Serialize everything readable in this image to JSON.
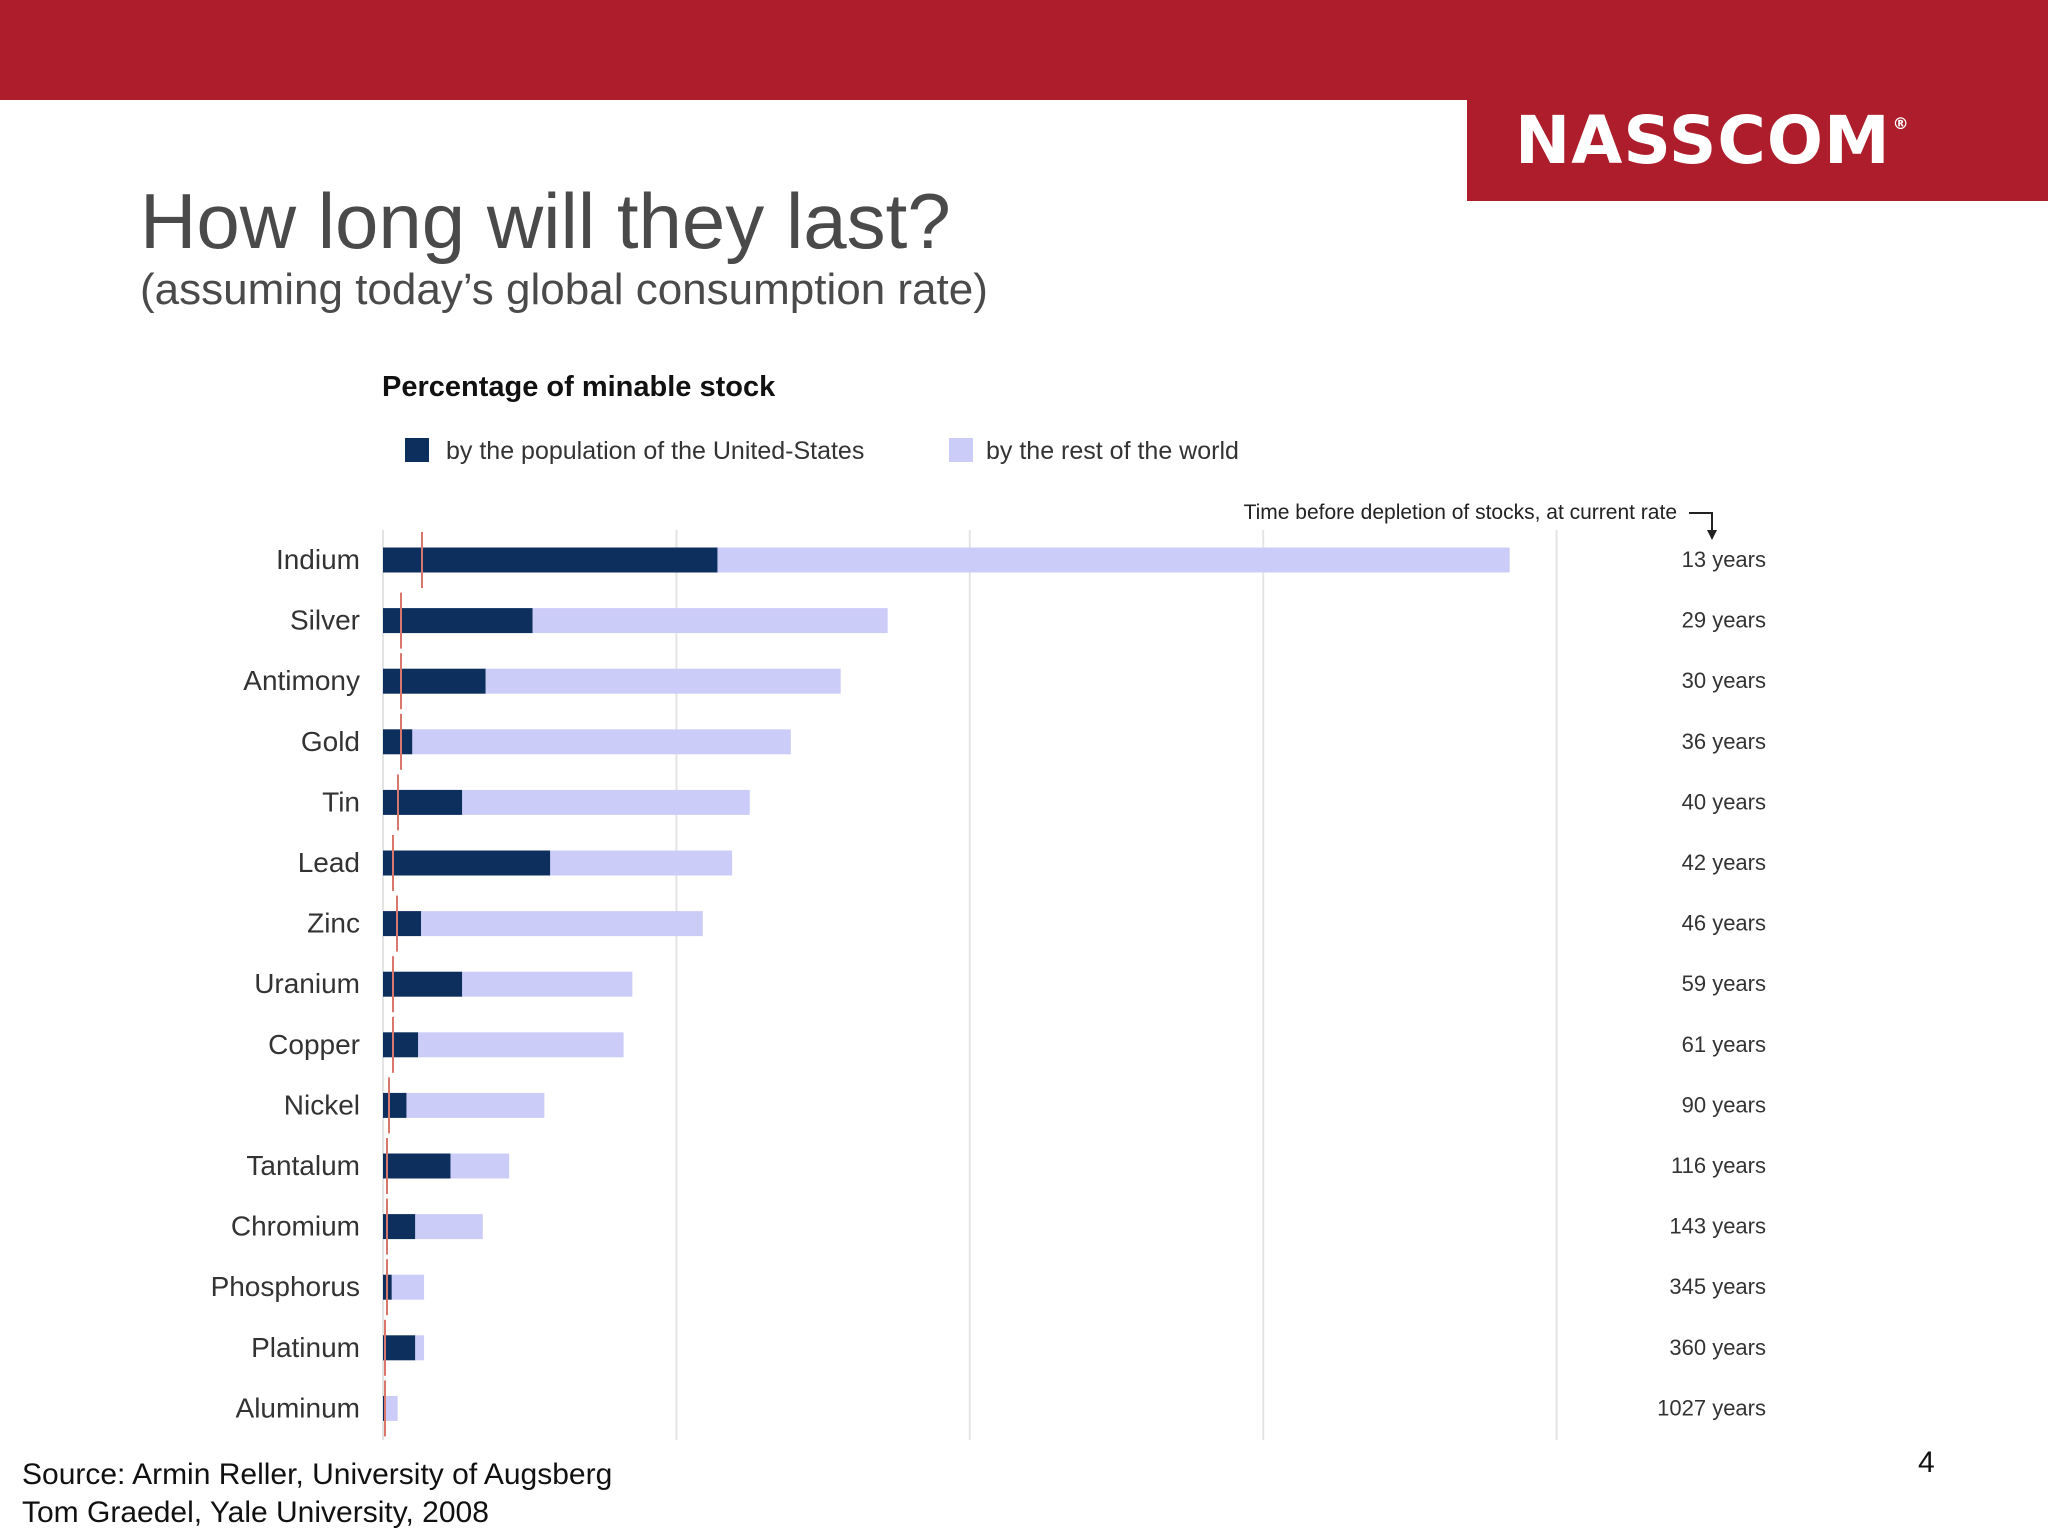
{
  "header": {
    "brand": "NASSCOM",
    "brand_mark": "®",
    "brand_color": "#ae1d2b"
  },
  "slide": {
    "title": "How long will they last?",
    "subtitle": "(assuming today’s global consumption rate)",
    "source_line1": "Source: Armin Reller, University of Augsberg",
    "source_line2": "Tom Graedel, Yale University, 2008",
    "page_number": "4"
  },
  "chart_data": {
    "type": "bar",
    "orientation": "horizontal",
    "stacked": true,
    "title": "Percentage of minable stock",
    "annotation": "Time before depletion of stocks, at current rate",
    "legend_placement": "top-left",
    "grid": true,
    "categories": [
      "Indium",
      "Silver",
      "Antimony",
      "Gold",
      "Tin",
      "Lead",
      "Zinc",
      "Uranium",
      "Copper",
      "Nickel",
      "Tantalum",
      "Chromium",
      "Phosphorus",
      "Platinum",
      "Aluminum"
    ],
    "series": [
      {
        "name": "by the population of the United-States",
        "color": "#0d2f5e",
        "values": [
          11.4,
          5.1,
          3.5,
          1.0,
          2.7,
          5.7,
          1.3,
          2.7,
          1.2,
          0.8,
          2.3,
          1.1,
          0.3,
          1.1,
          0.1
        ]
      },
      {
        "name": "by the rest of the world",
        "color": "#ccccf9",
        "values": [
          27.0,
          12.1,
          12.1,
          12.9,
          9.8,
          6.2,
          9.6,
          5.8,
          7.0,
          4.7,
          2.0,
          2.3,
          1.1,
          0.3,
          0.4
        ]
      }
    ],
    "years_labels": [
      "13 years",
      "29 years",
      "30 years",
      "36 years",
      "40 years",
      "42 years",
      "46 years",
      "59 years",
      "61 years",
      "90 years",
      "116 years",
      "143 years",
      "345 years",
      "360 years",
      "1027 years"
    ],
    "xlim": [
      0,
      40
    ]
  }
}
